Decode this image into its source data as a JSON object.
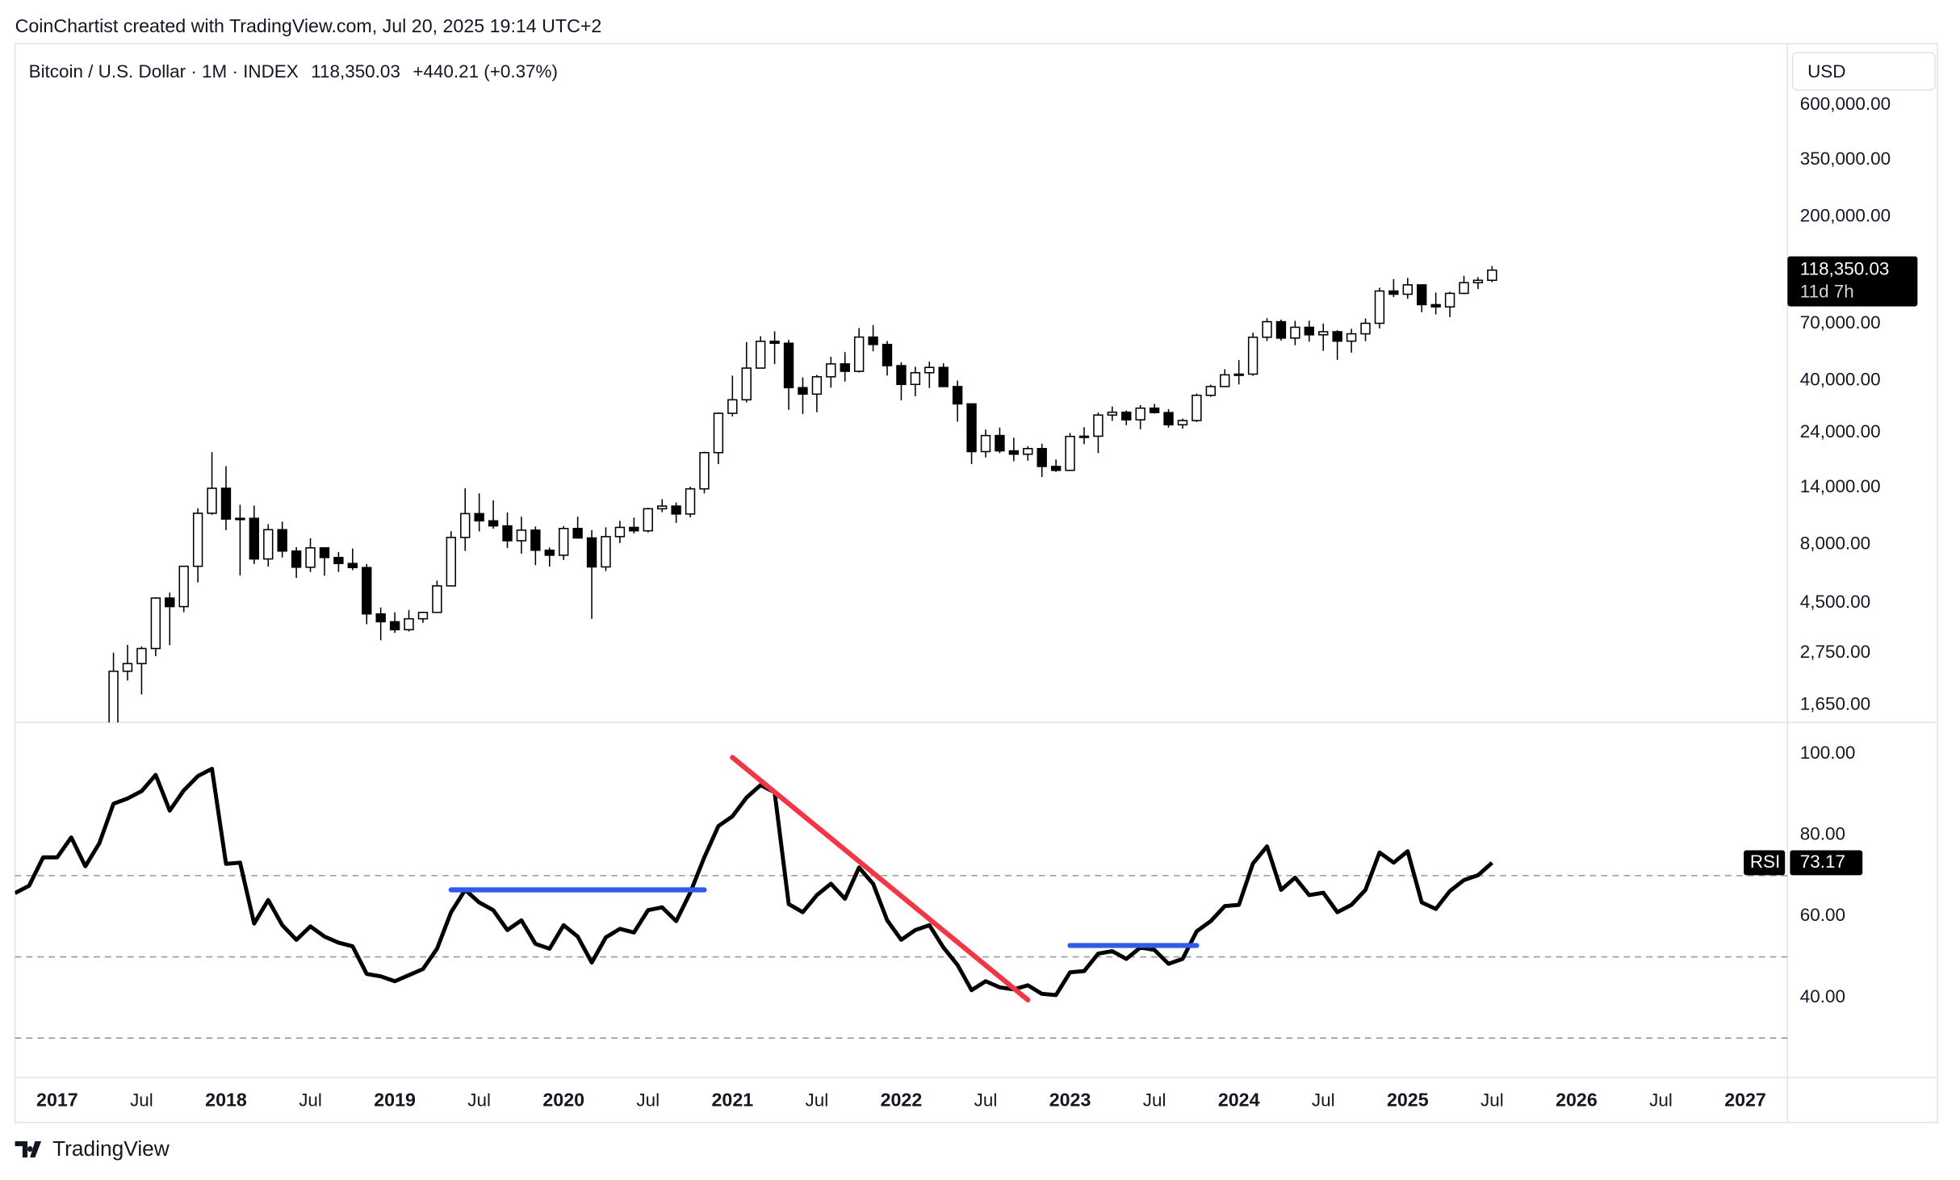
{
  "header": {
    "attribution": "CoinChartist created with TradingView.com, Jul 20, 2025 19:14 UTC+2"
  },
  "footer": {
    "brand": "TradingView"
  },
  "chart_data": [
    {
      "type": "candlestick",
      "title": "Bitcoin / U.S. Dollar · 1M · INDEX",
      "last_label": "118,350.03",
      "change": "+440.21 (+0.37%)",
      "currency": "USD",
      "countdown": "11d 7h",
      "log_scale": true,
      "ylim": [
        1390,
        1094000
      ],
      "xlim": [
        "2016-10",
        "2027-04"
      ],
      "yticks": [
        {
          "value": 600000,
          "label": "600,000.00"
        },
        {
          "value": 350000,
          "label": "350,000.00"
        },
        {
          "value": 200000,
          "label": "200,000.00"
        },
        {
          "value": 70000,
          "label": "70,000.00"
        },
        {
          "value": 40000,
          "label": "40,000.00"
        },
        {
          "value": 24000,
          "label": "24,000.00"
        },
        {
          "value": 14000,
          "label": "14,000.00"
        },
        {
          "value": 8000,
          "label": "8,000.00"
        },
        {
          "value": 4500,
          "label": "4,500.00"
        },
        {
          "value": 2750,
          "label": "2,750.00"
        },
        {
          "value": 1650,
          "label": "1,650.00"
        }
      ],
      "up_color": "#ffffff",
      "down_color": "#000000",
      "x": [
        "2017-05",
        "2017-06",
        "2017-07",
        "2017-08",
        "2017-09",
        "2017-10",
        "2017-11",
        "2017-12",
        "2018-01",
        "2018-02",
        "2018-03",
        "2018-04",
        "2018-05",
        "2018-06",
        "2018-07",
        "2018-08",
        "2018-09",
        "2018-10",
        "2018-11",
        "2018-12",
        "2019-01",
        "2019-02",
        "2019-03",
        "2019-04",
        "2019-05",
        "2019-06",
        "2019-07",
        "2019-08",
        "2019-09",
        "2019-10",
        "2019-11",
        "2019-12",
        "2020-01",
        "2020-02",
        "2020-03",
        "2020-04",
        "2020-05",
        "2020-06",
        "2020-07",
        "2020-08",
        "2020-09",
        "2020-10",
        "2020-11",
        "2020-12",
        "2021-01",
        "2021-02",
        "2021-03",
        "2021-04",
        "2021-05",
        "2021-06",
        "2021-07",
        "2021-08",
        "2021-09",
        "2021-10",
        "2021-11",
        "2021-12",
        "2022-01",
        "2022-02",
        "2022-03",
        "2022-04",
        "2022-05",
        "2022-06",
        "2022-07",
        "2022-08",
        "2022-09",
        "2022-10",
        "2022-11",
        "2022-12",
        "2023-01",
        "2023-02",
        "2023-03",
        "2023-04",
        "2023-05",
        "2023-06",
        "2023-07",
        "2023-08",
        "2023-09",
        "2023-10",
        "2023-11",
        "2023-12",
        "2024-01",
        "2024-02",
        "2024-03",
        "2024-04",
        "2024-05",
        "2024-06",
        "2024-07",
        "2024-08",
        "2024-09",
        "2024-10",
        "2024-11",
        "2024-12",
        "2025-01",
        "2025-02",
        "2025-03",
        "2025-04",
        "2025-05",
        "2025-06",
        "2025-07"
      ],
      "open": [
        1348,
        2300,
        2480,
        2875,
        4720,
        4340,
        6450,
        10860,
        13880,
        10260,
        10330,
        6930,
        9240,
        7490,
        6390,
        7730,
        7030,
        6630,
        6370,
        4040,
        3740,
        3460,
        3850,
        4100,
        5320,
        8560,
        10820,
        10080,
        9590,
        8290,
        9200,
        7550,
        7190,
        9350,
        8520,
        6410,
        8630,
        9450,
        9140,
        11350,
        11650,
        10780,
        13800,
        19700,
        28990,
        33110,
        45200,
        58800,
        57700,
        37300,
        35000,
        41500,
        47100,
        43800,
        61300,
        57000,
        46300,
        38500,
        43200,
        45500,
        37700,
        31800,
        19900,
        23300,
        20050,
        19400,
        20500,
        17200,
        16550,
        23100,
        23150,
        28500,
        29300,
        27200,
        30500,
        29200,
        25900,
        27000,
        34600,
        37700,
        42300,
        42600,
        61200,
        71300,
        60700,
        67500,
        62700,
        64600,
        58900,
        63300,
        70200,
        96400,
        93400,
        102400,
        84300,
        82500,
        94200,
        104600,
        107100
      ],
      "high": [
        2760,
        2980,
        2930,
        4760,
        4980,
        6470,
        11400,
        19800,
        17250,
        11800,
        11700,
        9750,
        10000,
        7780,
        8500,
        7760,
        7410,
        7680,
        6600,
        4300,
        4100,
        4200,
        4130,
        5600,
        9100,
        13880,
        13200,
        12330,
        10950,
        10500,
        9530,
        7750,
        9580,
        10500,
        9200,
        9460,
        10080,
        10400,
        11450,
        12470,
        12080,
        14100,
        19900,
        29300,
        41950,
        58350,
        61800,
        64900,
        59600,
        41300,
        42300,
        50500,
        52900,
        67000,
        69000,
        59000,
        47900,
        45800,
        48200,
        47400,
        40000,
        31900,
        24700,
        25200,
        22800,
        21000,
        21500,
        18400,
        23900,
        25300,
        29200,
        31000,
        29800,
        31400,
        31800,
        30200,
        27500,
        35200,
        38400,
        44700,
        48900,
        64000,
        73800,
        72800,
        71900,
        72000,
        70000,
        65600,
        66500,
        73600,
        99600,
        108300,
        109600,
        102800,
        95000,
        95700,
        111900,
        110500,
        123200
      ],
      "low": [
        1348,
        2100,
        1830,
        2670,
        2970,
        4110,
        5500,
        10700,
        9200,
        5900,
        6600,
        6430,
        7030,
        5750,
        6100,
        5880,
        6100,
        6210,
        3650,
        3120,
        3350,
        3400,
        3700,
        4100,
        5330,
        7500,
        9080,
        9330,
        7710,
        7300,
        6520,
        6430,
        6860,
        8450,
        3850,
        6150,
        8100,
        8900,
        8990,
        10980,
        9880,
        10420,
        13200,
        17600,
        28100,
        32300,
        45000,
        47000,
        30000,
        28800,
        29300,
        37300,
        39600,
        43300,
        53300,
        42000,
        32900,
        34300,
        37200,
        37600,
        26700,
        17600,
        18800,
        19600,
        18100,
        18200,
        15500,
        16300,
        16500,
        21400,
        19600,
        26900,
        25800,
        24800,
        28900,
        25200,
        24900,
        26600,
        34100,
        37600,
        38500,
        41900,
        59000,
        59200,
        56600,
        58600,
        53500,
        49000,
        52600,
        58900,
        66800,
        90800,
        89300,
        78300,
        76600,
        74600,
        93400,
        98300,
        105100
      ],
      "close": [
        2300,
        2480,
        2875,
        4720,
        4340,
        6450,
        10860,
        13880,
        10260,
        10330,
        6930,
        9240,
        7490,
        6390,
        7730,
        7030,
        6630,
        6370,
        4040,
        3740,
        3460,
        3850,
        4100,
        5320,
        8560,
        10820,
        10080,
        9590,
        8290,
        9200,
        7550,
        7190,
        9350,
        8520,
        6410,
        8630,
        9450,
        9140,
        11350,
        11650,
        10780,
        13800,
        19700,
        28990,
        33110,
        45200,
        58800,
        57700,
        37300,
        35000,
        41500,
        47100,
        43800,
        61300,
        57000,
        46300,
        38500,
        43200,
        45500,
        37700,
        31800,
        19900,
        23300,
        20050,
        19400,
        20500,
        17200,
        16550,
        23100,
        23150,
        28500,
        29300,
        27200,
        30500,
        29200,
        25900,
        27000,
        34600,
        37700,
        42300,
        42600,
        61200,
        71300,
        60700,
        67500,
        62700,
        64600,
        58900,
        63300,
        70200,
        96400,
        93400,
        102400,
        84300,
        82500,
        94200,
        104600,
        107100,
        118350.03
      ]
    },
    {
      "type": "line",
      "title": "RSI",
      "color": "#000000",
      "ylim": [
        20.3,
        107.7
      ],
      "xlim": [
        "2016-10",
        "2027-04"
      ],
      "yticks": [
        {
          "value": 100,
          "label": "100.00"
        },
        {
          "value": 80,
          "label": "80.00"
        },
        {
          "value": 60,
          "label": "60.00"
        },
        {
          "value": 40,
          "label": "40.00"
        }
      ],
      "bands": [
        70,
        50,
        30
      ],
      "xticks": [
        {
          "value": "2017-01",
          "label": "2017"
        },
        {
          "value": "2017-07",
          "label": "Jul"
        },
        {
          "value": "2018-01",
          "label": "2018"
        },
        {
          "value": "2018-07",
          "label": "Jul"
        },
        {
          "value": "2019-01",
          "label": "2019"
        },
        {
          "value": "2019-07",
          "label": "Jul"
        },
        {
          "value": "2020-01",
          "label": "2020"
        },
        {
          "value": "2020-07",
          "label": "Jul"
        },
        {
          "value": "2021-01",
          "label": "2021"
        },
        {
          "value": "2021-07",
          "label": "Jul"
        },
        {
          "value": "2022-01",
          "label": "2022"
        },
        {
          "value": "2022-07",
          "label": "Jul"
        },
        {
          "value": "2023-01",
          "label": "2023"
        },
        {
          "value": "2023-07",
          "label": "Jul"
        },
        {
          "value": "2024-01",
          "label": "2024"
        },
        {
          "value": "2024-07",
          "label": "Jul"
        },
        {
          "value": "2025-01",
          "label": "2025"
        },
        {
          "value": "2025-07",
          "label": "Jul"
        },
        {
          "value": "2026-01",
          "label": "2026"
        },
        {
          "value": "2026-07",
          "label": "Jul"
        },
        {
          "value": "2027-01",
          "label": "2027"
        }
      ],
      "x": [
        "2016-10",
        "2016-11",
        "2016-12",
        "2017-01",
        "2017-02",
        "2017-03",
        "2017-04",
        "2017-05",
        "2017-06",
        "2017-07",
        "2017-08",
        "2017-09",
        "2017-10",
        "2017-11",
        "2017-12",
        "2018-01",
        "2018-02",
        "2018-03",
        "2018-04",
        "2018-05",
        "2018-06",
        "2018-07",
        "2018-08",
        "2018-09",
        "2018-10",
        "2018-11",
        "2018-12",
        "2019-01",
        "2019-02",
        "2019-03",
        "2019-04",
        "2019-05",
        "2019-06",
        "2019-07",
        "2019-08",
        "2019-09",
        "2019-10",
        "2019-11",
        "2019-12",
        "2020-01",
        "2020-02",
        "2020-03",
        "2020-04",
        "2020-05",
        "2020-06",
        "2020-07",
        "2020-08",
        "2020-09",
        "2020-10",
        "2020-11",
        "2020-12",
        "2021-01",
        "2021-02",
        "2021-03",
        "2021-04",
        "2021-05",
        "2021-06",
        "2021-07",
        "2021-08",
        "2021-09",
        "2021-10",
        "2021-11",
        "2021-12",
        "2022-01",
        "2022-02",
        "2022-03",
        "2022-04",
        "2022-05",
        "2022-06",
        "2022-07",
        "2022-08",
        "2022-09",
        "2022-10",
        "2022-11",
        "2022-12",
        "2023-01",
        "2023-02",
        "2023-03",
        "2023-04",
        "2023-05",
        "2023-06",
        "2023-07",
        "2023-08",
        "2023-09",
        "2023-10",
        "2023-11",
        "2023-12",
        "2024-01",
        "2024-02",
        "2024-03",
        "2024-04",
        "2024-05",
        "2024-06",
        "2024-07",
        "2024-08",
        "2024-09",
        "2024-10",
        "2024-11",
        "2024-12",
        "2025-01",
        "2025-02",
        "2025-03",
        "2025-04",
        "2025-05",
        "2025-06",
        "2025-07"
      ],
      "values": [
        65.7,
        67.5,
        74.5,
        74.5,
        79.4,
        72.3,
        78,
        87.7,
        89,
        90.8,
        94.8,
        86,
        91,
        94.5,
        96.3,
        72.9,
        73.2,
        58.2,
        64,
        57.8,
        54.2,
        57.5,
        55,
        53.5,
        52.6,
        45.8,
        45.2,
        44,
        45.5,
        47,
        52,
        61,
        66.5,
        63.4,
        61.5,
        56.6,
        59,
        53.2,
        52,
        57.8,
        55,
        48.6,
        54.8,
        56.9,
        56,
        61.5,
        62.2,
        58.8,
        65.8,
        74.5,
        82.2,
        84.6,
        89.2,
        92.3,
        90.5,
        63,
        61,
        65.2,
        68,
        64.3,
        72,
        68,
        59,
        54.2,
        56.6,
        57.8,
        52.3,
        48,
        41.8,
        44,
        42.5,
        42,
        43,
        40.9,
        40.6,
        46.2,
        46.5,
        50.8,
        51.4,
        49.5,
        52.3,
        51.7,
        48.3,
        49.5,
        56.3,
        58.8,
        62.5,
        62.8,
        73,
        77.2,
        66.5,
        69.5,
        65.2,
        65.8,
        61,
        62.8,
        66.5,
        75.7,
        73.2,
        76,
        63.4,
        61.8,
        66.2,
        68.9,
        70.1,
        73.17
      ],
      "drawings": [
        {
          "color": "#2f5be8",
          "x": [
            "2019-05",
            "2020-11"
          ],
          "y": [
            66.5,
            66.5
          ]
        },
        {
          "color": "#f23645",
          "x": [
            "2021-01",
            "2022-10"
          ],
          "y": [
            99.1,
            39.4
          ]
        },
        {
          "color": "#2f5be8",
          "x": [
            "2023-01",
            "2023-10"
          ],
          "y": [
            52.8,
            52.8
          ]
        }
      ]
    }
  ]
}
